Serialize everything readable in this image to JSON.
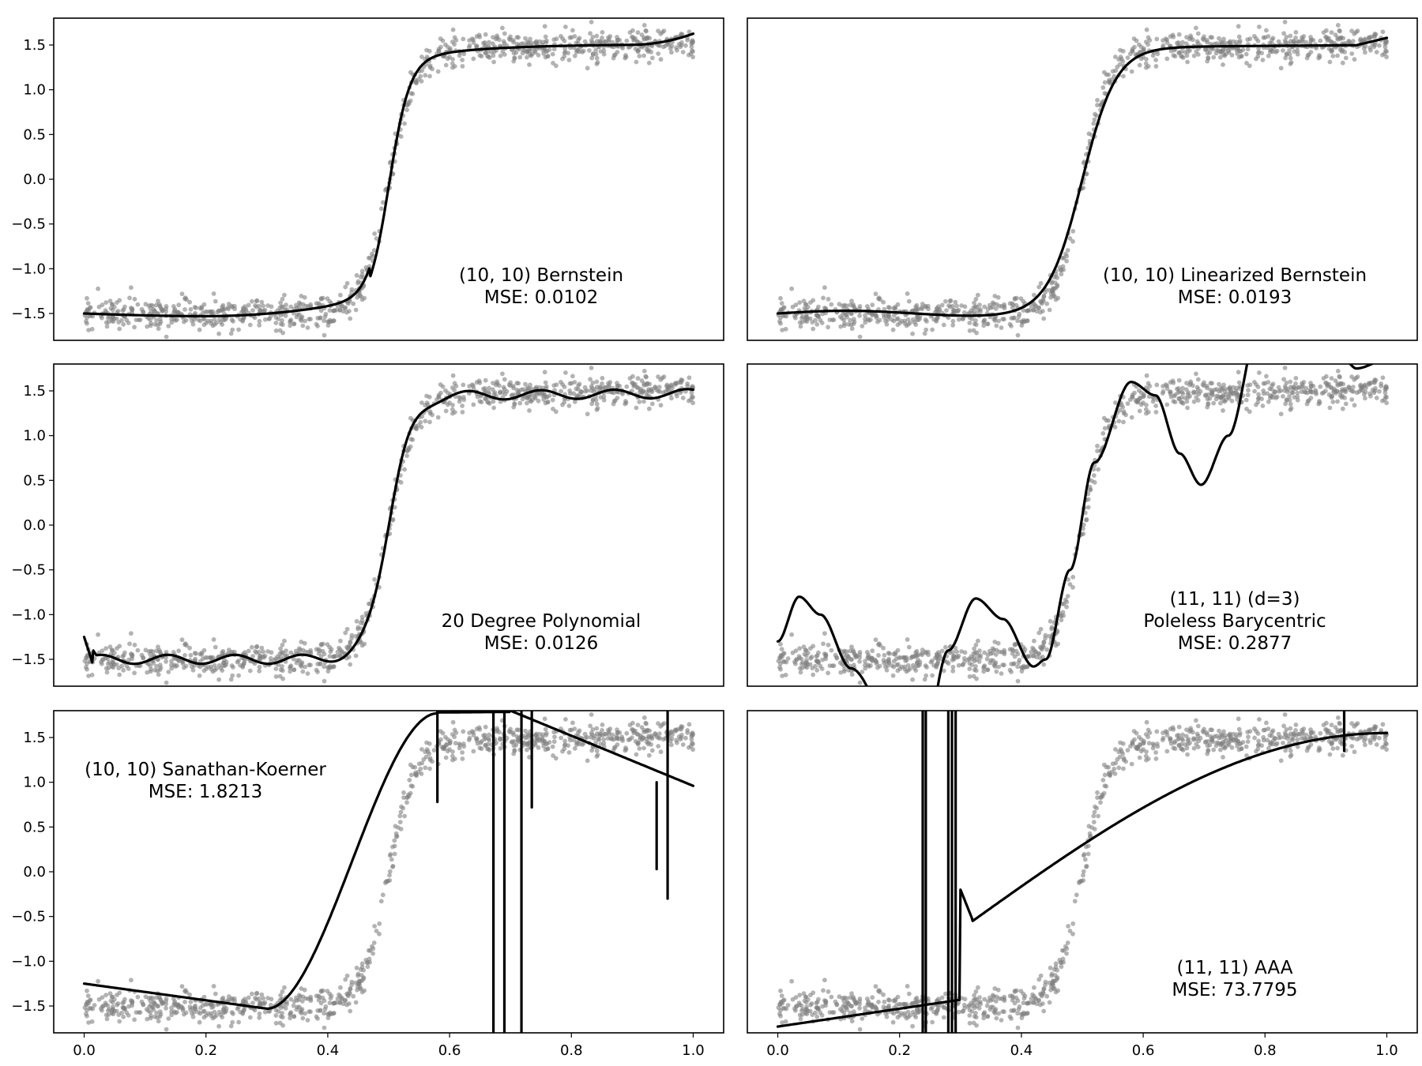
{
  "chart_data": [
    {
      "type": "scatter",
      "panel": "top-left",
      "fit": "bernstein",
      "annotation": [
        "(10, 10) Bernstein",
        "MSE: 0.0102"
      ],
      "annotation_position": "lower-right",
      "series": [
        {
          "name": "noisy samples",
          "kind": "scatter"
        },
        {
          "name": "fit",
          "kind": "line"
        }
      ],
      "xlim": [
        -0.05,
        1.05
      ],
      "ylim": [
        -1.8,
        1.8
      ],
      "xticks": [],
      "yticks": [
        "1.5",
        "1.0",
        "0.5",
        "0.0",
        "−0.5",
        "−1.0",
        "−1.5"
      ]
    },
    {
      "type": "scatter",
      "panel": "top-right",
      "fit": "linbern",
      "annotation": [
        "(10, 10) Linearized Bernstein",
        "MSE: 0.0193"
      ],
      "annotation_position": "lower-right",
      "series": [
        {
          "name": "noisy samples",
          "kind": "scatter"
        },
        {
          "name": "fit",
          "kind": "line"
        }
      ],
      "xlim": [
        -0.05,
        1.05
      ],
      "ylim": [
        -1.8,
        1.8
      ],
      "xticks": [],
      "yticks": []
    },
    {
      "type": "scatter",
      "panel": "middle-left",
      "fit": "poly",
      "annotation": [
        "20 Degree Polynomial",
        "MSE: 0.0126"
      ],
      "annotation_position": "lower-right",
      "series": [
        {
          "name": "noisy samples",
          "kind": "scatter"
        },
        {
          "name": "fit",
          "kind": "line"
        }
      ],
      "xlim": [
        -0.05,
        1.05
      ],
      "ylim": [
        -1.8,
        1.8
      ],
      "xticks": [],
      "yticks": [
        "1.5",
        "1.0",
        "0.5",
        "0.0",
        "−0.5",
        "−1.0",
        "−1.5"
      ]
    },
    {
      "type": "scatter",
      "panel": "middle-right",
      "fit": "poleless",
      "annotation": [
        "(11, 11) (d=3)",
        "Poleless Barycentric",
        "MSE: 0.2877"
      ],
      "annotation_position": "lower-right",
      "series": [
        {
          "name": "noisy samples",
          "kind": "scatter"
        },
        {
          "name": "fit",
          "kind": "line"
        }
      ],
      "xlim": [
        -0.05,
        1.05
      ],
      "ylim": [
        -1.8,
        1.8
      ],
      "xticks": [],
      "yticks": []
    },
    {
      "type": "scatter",
      "panel": "bottom-left",
      "fit": "sk",
      "annotation": [
        "(10, 10) Sanathan-Koerner",
        "MSE: 1.8213"
      ],
      "annotation_position": "upper-left",
      "series": [
        {
          "name": "noisy samples",
          "kind": "scatter"
        },
        {
          "name": "fit",
          "kind": "line"
        }
      ],
      "xlim": [
        -0.05,
        1.05
      ],
      "ylim": [
        -1.8,
        1.8
      ],
      "xticks": [
        "0.0",
        "0.2",
        "0.4",
        "0.6",
        "0.8",
        "1.0"
      ],
      "yticks": [
        "1.5",
        "1.0",
        "0.5",
        "0.0",
        "−0.5",
        "−1.0",
        "−1.5"
      ]
    },
    {
      "type": "scatter",
      "panel": "bottom-right",
      "fit": "aaa",
      "annotation": [
        "(11, 11) AAA",
        "MSE: 73.7795"
      ],
      "annotation_position": "lower-right",
      "series": [
        {
          "name": "noisy samples",
          "kind": "scatter"
        },
        {
          "name": "fit",
          "kind": "line"
        }
      ],
      "xlim": [
        -0.05,
        1.05
      ],
      "ylim": [
        -1.8,
        1.8
      ],
      "xticks": [
        "0.0",
        "0.2",
        "0.4",
        "0.6",
        "0.8",
        "1.0"
      ],
      "yticks": []
    }
  ]
}
